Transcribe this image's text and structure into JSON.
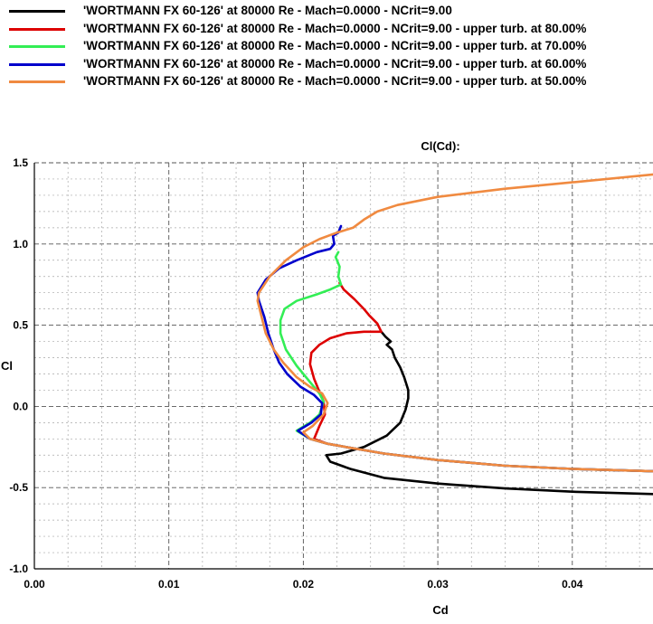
{
  "chart_data": {
    "type": "line",
    "title": "Cl(Cd):",
    "xlabel": "Cd",
    "ylabel": "Cl",
    "xlim": [
      0.0,
      0.046
    ],
    "ylim": [
      -1.0,
      1.5
    ],
    "x_ticks": [
      "0.00",
      "0.01",
      "0.02",
      "0.03",
      "0.04"
    ],
    "x_tick_values": [
      0.0,
      0.01,
      0.02,
      0.03,
      0.04
    ],
    "y_ticks": [
      "1.5",
      "1.0",
      "0.5",
      "0.0",
      "-0.5",
      "-1.0"
    ],
    "y_tick_values": [
      1.5,
      1.0,
      0.5,
      0.0,
      -0.5,
      -1.0
    ],
    "grid": true,
    "legend_position": "top-left",
    "series": [
      {
        "name": "'WORTMANN FX 60-126' at 80000 Re - Mach=0.0000 - NCrit=9.00",
        "color": "#000000",
        "points": [
          [
            0.0462,
            -0.54
          ],
          [
            0.04,
            -0.525
          ],
          [
            0.035,
            -0.505
          ],
          [
            0.03,
            -0.475
          ],
          [
            0.026,
            -0.44
          ],
          [
            0.0235,
            -0.385
          ],
          [
            0.022,
            -0.34
          ],
          [
            0.0217,
            -0.3
          ],
          [
            0.0228,
            -0.29
          ],
          [
            0.0245,
            -0.25
          ],
          [
            0.0262,
            -0.18
          ],
          [
            0.0272,
            -0.1
          ],
          [
            0.0276,
            -0.02
          ],
          [
            0.0278,
            0.05
          ],
          [
            0.0278,
            0.1
          ],
          [
            0.0275,
            0.18
          ],
          [
            0.0272,
            0.24
          ],
          [
            0.0268,
            0.3
          ],
          [
            0.0266,
            0.35
          ],
          [
            0.0262,
            0.38
          ],
          [
            0.0265,
            0.4
          ],
          [
            0.0261,
            0.43
          ],
          [
            0.0258,
            0.46
          ]
        ]
      },
      {
        "name": "'WORTMANN FX 60-126' at 80000 Re - Mach=0.0000 - NCrit=9.00 - upper turb. at 80.00%",
        "color": "#dd0000",
        "points": [
          [
            0.0462,
            -0.4
          ],
          [
            0.04,
            -0.385
          ],
          [
            0.035,
            -0.365
          ],
          [
            0.03,
            -0.33
          ],
          [
            0.026,
            -0.29
          ],
          [
            0.0235,
            -0.255
          ],
          [
            0.0218,
            -0.23
          ],
          [
            0.0208,
            -0.2
          ],
          [
            0.0212,
            -0.12
          ],
          [
            0.0216,
            -0.05
          ],
          [
            0.0215,
            0.03
          ],
          [
            0.0212,
            0.09
          ],
          [
            0.0208,
            0.17
          ],
          [
            0.0205,
            0.26
          ],
          [
            0.0206,
            0.33
          ],
          [
            0.0212,
            0.38
          ],
          [
            0.022,
            0.42
          ],
          [
            0.0232,
            0.45
          ],
          [
            0.0245,
            0.46
          ],
          [
            0.0258,
            0.46
          ],
          [
            0.0255,
            0.51
          ],
          [
            0.0249,
            0.56
          ],
          [
            0.0245,
            0.6
          ],
          [
            0.0238,
            0.66
          ],
          [
            0.023,
            0.72
          ],
          [
            0.0227,
            0.76
          ]
        ]
      },
      {
        "name": "'WORTMANN FX 60-126' at 80000 Re - Mach=0.0000 - NCrit=9.00 - upper turb. at 70.00%",
        "color": "#33ee55",
        "points": [
          [
            0.0462,
            -0.4
          ],
          [
            0.04,
            -0.385
          ],
          [
            0.035,
            -0.365
          ],
          [
            0.03,
            -0.33
          ],
          [
            0.026,
            -0.29
          ],
          [
            0.0235,
            -0.255
          ],
          [
            0.0218,
            -0.23
          ],
          [
            0.0205,
            -0.2
          ],
          [
            0.0195,
            -0.15
          ],
          [
            0.0205,
            -0.1
          ],
          [
            0.0212,
            -0.05
          ],
          [
            0.0215,
            0.03
          ],
          [
            0.0212,
            0.08
          ],
          [
            0.0205,
            0.15
          ],
          [
            0.0195,
            0.25
          ],
          [
            0.0187,
            0.35
          ],
          [
            0.0183,
            0.45
          ],
          [
            0.0183,
            0.53
          ],
          [
            0.0186,
            0.6
          ],
          [
            0.0195,
            0.65
          ],
          [
            0.021,
            0.69
          ],
          [
            0.022,
            0.72
          ],
          [
            0.0228,
            0.75
          ],
          [
            0.0226,
            0.8
          ],
          [
            0.0227,
            0.86
          ],
          [
            0.0224,
            0.92
          ],
          [
            0.0226,
            0.95
          ]
        ]
      },
      {
        "name": "'WORTMANN FX 60-126' at 80000 Re - Mach=0.0000 - NCrit=9.00 - upper turb. at 60.00%",
        "color": "#0000cc",
        "points": [
          [
            0.0462,
            -0.4
          ],
          [
            0.04,
            -0.385
          ],
          [
            0.035,
            -0.365
          ],
          [
            0.03,
            -0.33
          ],
          [
            0.026,
            -0.29
          ],
          [
            0.0235,
            -0.255
          ],
          [
            0.0218,
            -0.23
          ],
          [
            0.0205,
            -0.2
          ],
          [
            0.0196,
            -0.15
          ],
          [
            0.0206,
            -0.1
          ],
          [
            0.0213,
            -0.05
          ],
          [
            0.0214,
            0.02
          ],
          [
            0.0208,
            0.07
          ],
          [
            0.0198,
            0.12
          ],
          [
            0.0188,
            0.2
          ],
          [
            0.0182,
            0.27
          ],
          [
            0.0178,
            0.35
          ],
          [
            0.0174,
            0.45
          ],
          [
            0.0171,
            0.55
          ],
          [
            0.0167,
            0.65
          ],
          [
            0.0166,
            0.7
          ],
          [
            0.0172,
            0.78
          ],
          [
            0.0182,
            0.85
          ],
          [
            0.0195,
            0.9
          ],
          [
            0.021,
            0.95
          ],
          [
            0.022,
            0.97
          ],
          [
            0.0223,
            1.0
          ],
          [
            0.0222,
            1.05
          ],
          [
            0.0226,
            1.07
          ],
          [
            0.0228,
            1.11
          ]
        ]
      },
      {
        "name": "'WORTMANN FX 60-126' at 80000 Re - Mach=0.0000 - NCrit=9.00 - upper turb. at 50.00%",
        "color": "#f08a40",
        "points": [
          [
            0.0462,
            -0.4
          ],
          [
            0.04,
            -0.385
          ],
          [
            0.035,
            -0.365
          ],
          [
            0.03,
            -0.33
          ],
          [
            0.026,
            -0.29
          ],
          [
            0.0235,
            -0.255
          ],
          [
            0.0218,
            -0.23
          ],
          [
            0.0205,
            -0.2
          ],
          [
            0.02,
            -0.16
          ],
          [
            0.0207,
            -0.12
          ],
          [
            0.0215,
            -0.05
          ],
          [
            0.0218,
            0.02
          ],
          [
            0.0214,
            0.08
          ],
          [
            0.0205,
            0.12
          ],
          [
            0.0195,
            0.18
          ],
          [
            0.0185,
            0.27
          ],
          [
            0.0178,
            0.35
          ],
          [
            0.0172,
            0.45
          ],
          [
            0.0169,
            0.55
          ],
          [
            0.0166,
            0.65
          ],
          [
            0.0167,
            0.7
          ],
          [
            0.0175,
            0.8
          ],
          [
            0.0187,
            0.9
          ],
          [
            0.02,
            0.98
          ],
          [
            0.0212,
            1.03
          ],
          [
            0.0225,
            1.07
          ],
          [
            0.0237,
            1.1
          ],
          [
            0.0245,
            1.15
          ],
          [
            0.0255,
            1.2
          ],
          [
            0.027,
            1.24
          ],
          [
            0.03,
            1.29
          ],
          [
            0.035,
            1.34
          ],
          [
            0.04,
            1.38
          ],
          [
            0.0462,
            1.43
          ]
        ]
      }
    ]
  }
}
